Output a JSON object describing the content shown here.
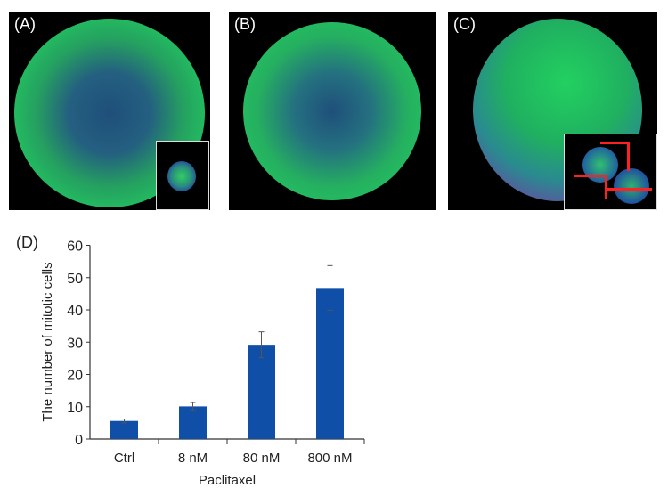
{
  "panels": [
    {
      "label": "(A)",
      "has_inset": true
    },
    {
      "label": "(B)",
      "has_inset": false
    },
    {
      "label": "(C)",
      "has_inset": true
    }
  ],
  "colors": {
    "bar": "#0f4fa8",
    "error_bar": "#555555",
    "fluorescence_green": "#22c060",
    "fluorescence_blue": "#2a4fb0",
    "marker_red": "#ff2020"
  },
  "chart_data": {
    "panel_label": "(D)",
    "type": "bar",
    "categories": [
      "Ctrl",
      "8 nM",
      "80 nM",
      "800 nM"
    ],
    "values": [
      5.6,
      10.1,
      29.2,
      46.8
    ],
    "errors": [
      0.6,
      1.2,
      4.0,
      6.9
    ],
    "xlabel": "Paclitaxel",
    "ylabel": "The number of mitotic cells",
    "ylim": [
      0,
      60
    ],
    "yticks": [
      0,
      10,
      20,
      30,
      40,
      50,
      60
    ],
    "grid": false
  }
}
